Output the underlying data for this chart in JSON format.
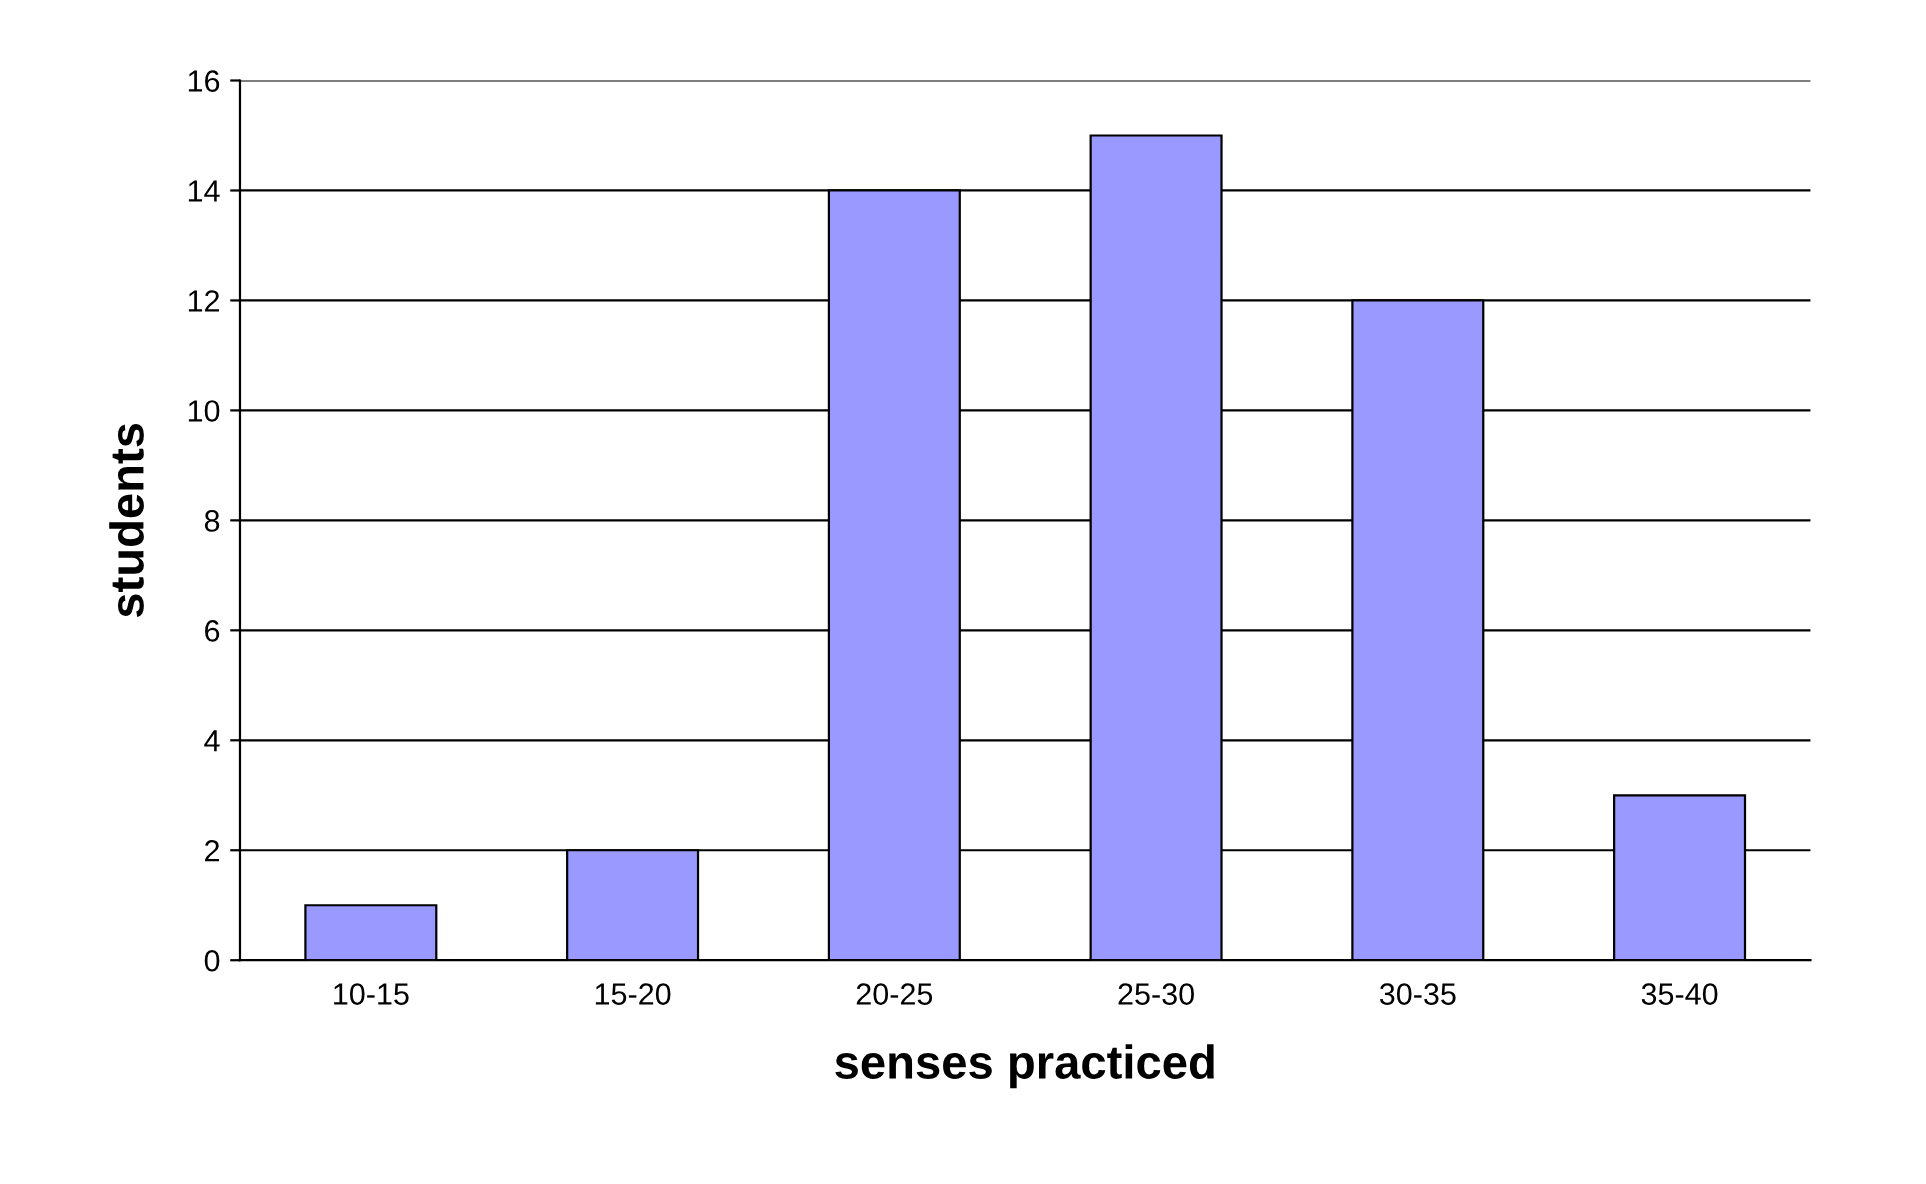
{
  "chart_data": {
    "type": "bar",
    "xlabel": "senses practiced",
    "ylabel": "students",
    "categories": [
      "10-15",
      "15-20",
      "20-25",
      "25-30",
      "30-35",
      "35-40"
    ],
    "values": [
      1,
      2,
      14,
      15,
      12,
      3
    ],
    "color": "#9999ff",
    "ylim": [
      0,
      16
    ],
    "yticks": [
      0,
      2,
      4,
      6,
      8,
      10,
      12,
      14,
      16
    ],
    "grid": "y",
    "legend": false
  }
}
